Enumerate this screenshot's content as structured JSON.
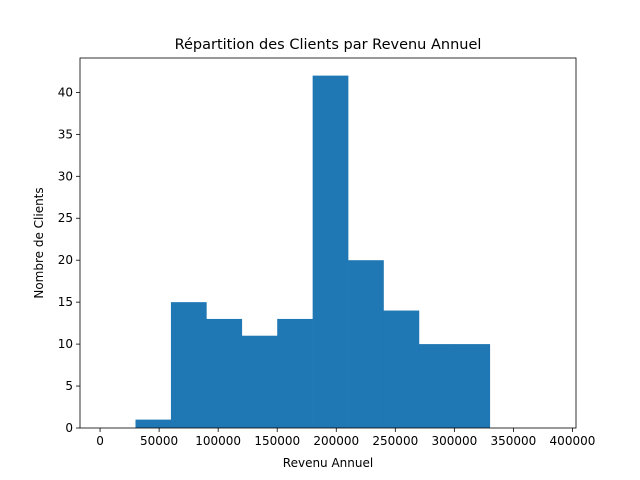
{
  "chart_data": {
    "type": "bar",
    "title": "Répartition des Clients par Revenu Annuel",
    "xlabel": "Revenu Annuel",
    "ylabel": "Nombre de Clients",
    "xlim": [
      -17000,
      403000
    ],
    "ylim": [
      0,
      44.1
    ],
    "x_ticks": [
      0,
      50000,
      100000,
      150000,
      200000,
      250000,
      300000,
      350000,
      400000
    ],
    "y_ticks": [
      0,
      5,
      10,
      15,
      20,
      25,
      30,
      35,
      40
    ],
    "bins": [
      {
        "start": 0,
        "end": 30000,
        "count": 0
      },
      {
        "start": 30000,
        "end": 60000,
        "count": 1
      },
      {
        "start": 60000,
        "end": 90000,
        "count": 15
      },
      {
        "start": 90000,
        "end": 120000,
        "count": 13
      },
      {
        "start": 120000,
        "end": 150000,
        "count": 11
      },
      {
        "start": 150000,
        "end": 180000,
        "count": 13
      },
      {
        "start": 180000,
        "end": 210000,
        "count": 42
      },
      {
        "start": 210000,
        "end": 240000,
        "count": 20
      },
      {
        "start": 240000,
        "end": 270000,
        "count": 14
      },
      {
        "start": 270000,
        "end": 300000,
        "count": 10
      },
      {
        "start": 300000,
        "end": 330000,
        "count": 10
      },
      {
        "start": 330000,
        "end": 360000,
        "count": 0
      },
      {
        "start": 360000,
        "end": 390000,
        "count": 0
      }
    ],
    "bar_color": "#1f77b4",
    "grid": false,
    "legend": "none"
  }
}
